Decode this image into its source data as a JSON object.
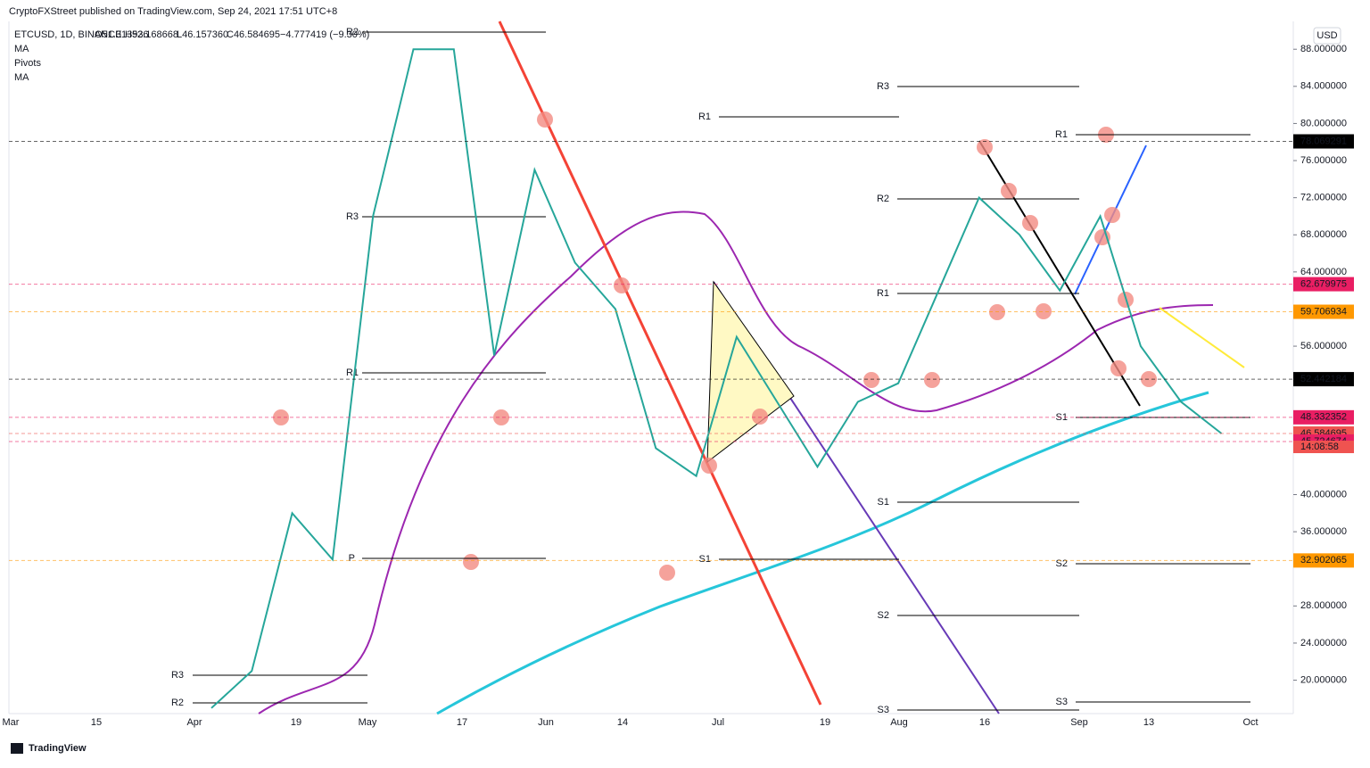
{
  "header": {
    "publisher": "CryptoFXStreet published on TradingView.com, Sep 24, 2021 17:51 UTC+8",
    "symbol": "ETCUSD, 1D, BINANCE",
    "ohlc": [
      "O51.313936",
      "H52.168668",
      "L46.157360",
      "C46.584695",
      "−4.777419 (−9.30%)"
    ],
    "indicators": [
      "MA",
      "Pivots",
      "MA"
    ],
    "currency": "USD",
    "brand": "TradingView"
  },
  "chart_data": {
    "type": "line",
    "name": "ETCUSD",
    "color": "#26a69a",
    "values": [
      17,
      21,
      38,
      33,
      70,
      88,
      88,
      55,
      75,
      65,
      60,
      45,
      42,
      57,
      50,
      43,
      50,
      52,
      62,
      72,
      68,
      62,
      70,
      56,
      50,
      46.584695
    ],
    "ylim": [
      16.4,
      91.0
    ],
    "yticks": [
      {
        "value": 88,
        "label": "88.000000"
      },
      {
        "value": 84,
        "label": "84.000000"
      },
      {
        "value": 80,
        "label": "80.000000"
      },
      {
        "value": 76,
        "label": "76.000000"
      },
      {
        "value": 72,
        "label": "72.000000"
      },
      {
        "value": 68,
        "label": "68.000000"
      },
      {
        "value": 64,
        "label": "64.000000"
      },
      {
        "value": 56,
        "label": "56.000000"
      },
      {
        "value": 40,
        "label": "40.000000"
      },
      {
        "value": 36,
        "label": "36.000000"
      },
      {
        "value": 28,
        "label": "28.000000"
      },
      {
        "value": 24,
        "label": "24.000000"
      },
      {
        "value": 20,
        "label": "20.000000"
      }
    ],
    "xticks": [
      "Mar",
      "15",
      "Apr",
      "19",
      "May",
      "17",
      "Jun",
      "14",
      "Jul",
      "19",
      "Aug",
      "16",
      "Sep",
      "13",
      "Oct"
    ],
    "price_tags": [
      {
        "value": 78.069291,
        "color": "#000000"
      },
      {
        "value": 62.679975,
        "color": "#e91e63"
      },
      {
        "value": 59.706934,
        "color": "#ff9800"
      },
      {
        "value": 52.442184,
        "color": "#000000"
      },
      {
        "value": 48.332352,
        "color": "#e91e63"
      },
      {
        "value": 46.584695,
        "color": "#ef5350"
      },
      {
        "value": 45.724674,
        "color": "#e91e63"
      },
      {
        "value": 32.902065,
        "color": "#ff9800"
      }
    ],
    "countdown": "14:08:58",
    "pivots": [
      "R3",
      "R2",
      "R1",
      "P",
      "R3",
      "R2",
      "R1",
      "S1",
      "R3",
      "R2",
      "R1",
      "S1",
      "S2",
      "S3",
      "R1",
      "S1",
      "S2",
      "S3"
    ]
  }
}
